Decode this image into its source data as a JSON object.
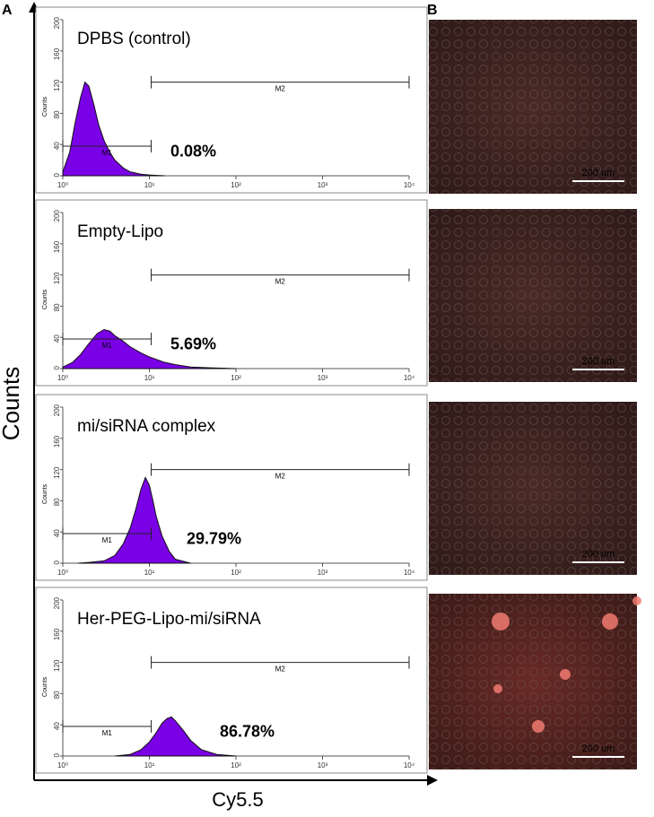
{
  "panel_labels": [
    "A",
    "B"
  ],
  "axis_labels": {
    "y": "Counts",
    "x": "Cy5.5"
  },
  "chart_data": [
    {
      "type": "area",
      "title": "DPBS (control)",
      "y_label": "Counts",
      "log_x": true,
      "color": "#7a00e6",
      "x": [
        1,
        1.2,
        1.4,
        1.6,
        1.8,
        2,
        2.3,
        2.6,
        3,
        3.5,
        4,
        5,
        6,
        8,
        10,
        15
      ],
      "y": [
        5,
        30,
        70,
        100,
        120,
        115,
        90,
        65,
        45,
        30,
        20,
        10,
        5,
        2,
        1,
        0
      ],
      "xlim": [
        1,
        10000
      ],
      "xticks": [
        {
          "value": 1,
          "label": "10⁰"
        },
        {
          "value": 10,
          "label": "10¹"
        },
        {
          "value": 100,
          "label": "10²"
        },
        {
          "value": 1000,
          "label": "10³"
        },
        {
          "value": 10000,
          "label": "10⁴"
        }
      ],
      "ylim": [
        0,
        200
      ],
      "yticks": [
        0,
        40,
        80,
        120,
        160,
        200
      ],
      "gates": [
        {
          "label": "M1",
          "range": [
            1,
            10.5
          ],
          "y": 38
        },
        {
          "label": "M2",
          "range": [
            10.5,
            10000
          ],
          "y": 120
        }
      ],
      "annotation": {
        "text": "0.08%",
        "color": "#111111"
      }
    },
    {
      "type": "area",
      "title": "Empty-Lipo",
      "y_label": "Counts",
      "log_x": true,
      "color": "#7a00e6",
      "x": [
        1,
        1.3,
        1.6,
        2,
        2.5,
        3,
        3.5,
        4,
        5,
        6,
        8,
        10,
        15,
        20,
        30,
        50,
        100
      ],
      "y": [
        2,
        8,
        18,
        32,
        45,
        50,
        48,
        42,
        35,
        28,
        20,
        15,
        8,
        5,
        2,
        1,
        0
      ],
      "xlim": [
        1,
        10000
      ],
      "xticks": [
        {
          "value": 1,
          "label": "10⁰"
        },
        {
          "value": 10,
          "label": "10¹"
        },
        {
          "value": 100,
          "label": "10²"
        },
        {
          "value": 1000,
          "label": "10³"
        },
        {
          "value": 10000,
          "label": "10⁴"
        }
      ],
      "ylim": [
        0,
        200
      ],
      "yticks": [
        0,
        40,
        80,
        120,
        160,
        200
      ],
      "gates": [
        {
          "label": "M1",
          "range": [
            1,
            10.5
          ],
          "y": 38
        },
        {
          "label": "M2",
          "range": [
            10.5,
            10000
          ],
          "y": 120
        }
      ],
      "annotation": {
        "text": "5.69%",
        "color": "#111111"
      }
    },
    {
      "type": "area",
      "title": "mi/siRNA complex",
      "y_label": "Counts",
      "log_x": true,
      "color": "#7a00e6",
      "x": [
        1.5,
        2,
        3,
        4,
        5,
        6,
        7,
        8,
        9,
        10,
        11,
        12,
        14,
        17,
        20,
        30
      ],
      "y": [
        0,
        1,
        3,
        10,
        25,
        45,
        70,
        95,
        110,
        100,
        80,
        60,
        35,
        15,
        5,
        0
      ],
      "xlim": [
        1,
        10000
      ],
      "xticks": [
        {
          "value": 1,
          "label": "10⁰"
        },
        {
          "value": 10,
          "label": "10¹"
        },
        {
          "value": 100,
          "label": "10²"
        },
        {
          "value": 1000,
          "label": "10³"
        },
        {
          "value": 10000,
          "label": "10⁴"
        }
      ],
      "ylim": [
        0,
        200
      ],
      "yticks": [
        0,
        40,
        80,
        120,
        160,
        200
      ],
      "gates": [
        {
          "label": "M1",
          "range": [
            1,
            10.5
          ],
          "y": 38
        },
        {
          "label": "M2",
          "range": [
            10.5,
            10000
          ],
          "y": 120
        }
      ],
      "annotation": {
        "text": "29.79%",
        "color": "#e8201e"
      }
    },
    {
      "type": "area",
      "title": "Her-PEG-Lipo-mi/siRNA",
      "y_label": "Counts",
      "log_x": true,
      "color": "#7a00e6",
      "x": [
        4,
        6,
        8,
        10,
        12,
        14,
        16,
        18,
        20,
        25,
        30,
        40,
        60,
        100
      ],
      "y": [
        0,
        2,
        8,
        18,
        30,
        42,
        48,
        50,
        45,
        32,
        20,
        8,
        2,
        0
      ],
      "xlim": [
        1,
        10000
      ],
      "xticks": [
        {
          "value": 1,
          "label": "10⁰"
        },
        {
          "value": 10,
          "label": "10¹"
        },
        {
          "value": 100,
          "label": "10²"
        },
        {
          "value": 1000,
          "label": "10³"
        },
        {
          "value": 10000,
          "label": "10⁴"
        }
      ],
      "ylim": [
        0,
        200
      ],
      "yticks": [
        0,
        40,
        80,
        120,
        160,
        200
      ],
      "gates": [
        {
          "label": "M1",
          "range": [
            1,
            10.5
          ],
          "y": 38
        },
        {
          "label": "M2",
          "range": [
            10.5,
            10000
          ],
          "y": 120
        }
      ],
      "annotation": {
        "text": "86.78%",
        "color": "#e8201e"
      }
    }
  ],
  "images": [
    {
      "scale_bar": "200 um",
      "fluorescence": "none"
    },
    {
      "scale_bar": "200 um",
      "fluorescence": "none"
    },
    {
      "scale_bar": "200 um",
      "fluorescence": "none"
    },
    {
      "scale_bar": "200 um",
      "fluorescence": "strong"
    }
  ]
}
